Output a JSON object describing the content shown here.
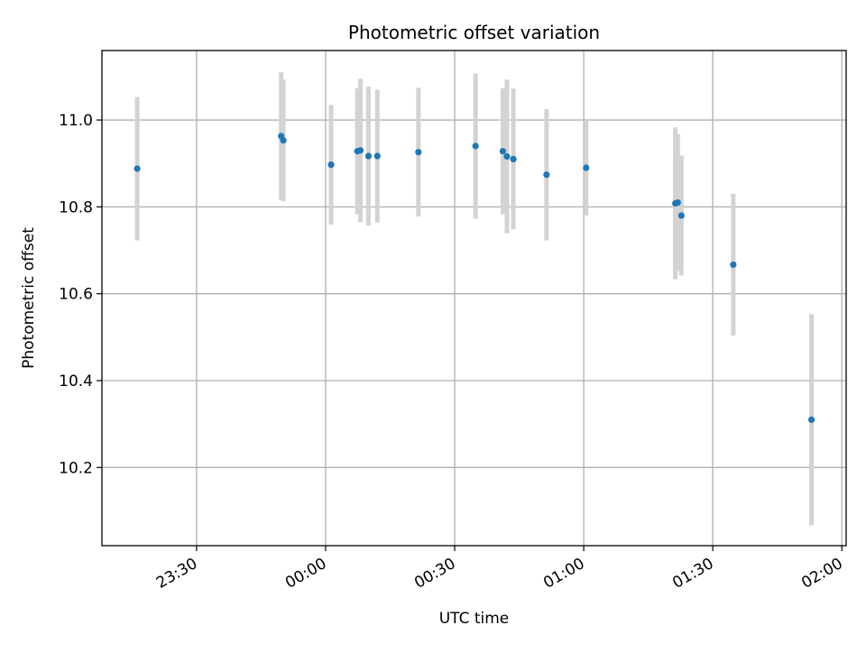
{
  "chart_data": {
    "type": "scatter",
    "title": "Photometric offset variation",
    "xlabel": "UTC time",
    "ylabel": "Photometric offset",
    "grid": true,
    "x_axis_type": "time",
    "x_range": [
      "23:08",
      "02:01"
    ],
    "y_range": [
      10.02,
      11.16
    ],
    "x_ticks": [
      "23:30",
      "00:00",
      "00:30",
      "01:00",
      "01:30",
      "02:00"
    ],
    "y_ticks": [
      "10.2",
      "10.4",
      "10.6",
      "10.8",
      "11.0"
    ],
    "colors": {
      "point": "#1f77b4",
      "errorbar": "#d3d3d3",
      "grid": "#b0b0b0",
      "axes": "#000000"
    },
    "points": [
      {
        "x": "23:16:12",
        "y": 10.888,
        "err": 0.165
      },
      {
        "x": "23:49:40",
        "y": 10.963,
        "err": 0.147
      },
      {
        "x": "23:50:10",
        "y": 10.953,
        "err": 0.14
      },
      {
        "x": "00:01:16",
        "y": 10.897,
        "err": 0.138
      },
      {
        "x": "00:07:23",
        "y": 10.928,
        "err": 0.145
      },
      {
        "x": "00:08:05",
        "y": 10.93,
        "err": 0.165
      },
      {
        "x": "00:09:57",
        "y": 10.917,
        "err": 0.16
      },
      {
        "x": "00:12:01",
        "y": 10.917,
        "err": 0.153
      },
      {
        "x": "00:21:34",
        "y": 10.926,
        "err": 0.148
      },
      {
        "x": "00:34:51",
        "y": 10.94,
        "err": 0.167
      },
      {
        "x": "00:41:12",
        "y": 10.928,
        "err": 0.145
      },
      {
        "x": "00:42:09",
        "y": 10.916,
        "err": 0.177
      },
      {
        "x": "00:43:38",
        "y": 10.91,
        "err": 0.162
      },
      {
        "x": "00:51:21",
        "y": 10.874,
        "err": 0.151
      },
      {
        "x": "01:00:33",
        "y": 10.89,
        "err": 0.11
      },
      {
        "x": "01:21:17",
        "y": 10.808,
        "err": 0.175
      },
      {
        "x": "01:21:51",
        "y": 10.81,
        "err": 0.158
      },
      {
        "x": "01:22:42",
        "y": 10.78,
        "err": 0.138
      },
      {
        "x": "01:34:46",
        "y": 10.667,
        "err": 0.163
      },
      {
        "x": "01:52:57",
        "y": 10.31,
        "err": 0.243
      }
    ]
  }
}
